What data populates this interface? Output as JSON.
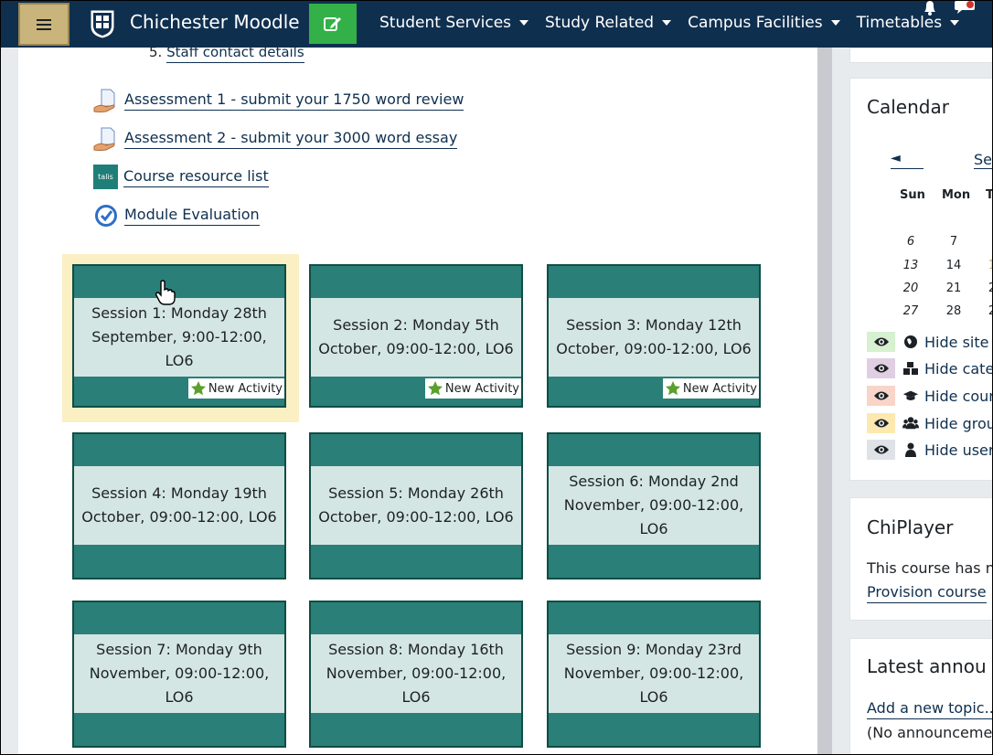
{
  "navbar": {
    "brand": "Chichester Moodle",
    "menu": [
      {
        "label": "Student Services"
      },
      {
        "label": "Study Related"
      },
      {
        "label": "Campus Facilities"
      },
      {
        "label": "Timetables"
      }
    ],
    "colors": {
      "bar": "#0f2f4f",
      "hamburger": "#c9b47b",
      "edit": "#34b049"
    }
  },
  "content": {
    "staff_contact": {
      "number": "5.",
      "label": "Staff contact details"
    },
    "activities": [
      {
        "icon": "assignment-icon",
        "label": "Assessment 1 - submit your 1750 word review"
      },
      {
        "icon": "assignment-icon",
        "label": "Assessment 2 - submit your 3000 word essay"
      },
      {
        "icon": "talis-icon",
        "label": "Course resource list",
        "icon_text": "talis"
      },
      {
        "icon": "feedback-icon",
        "label": "Module Evaluation"
      }
    ],
    "tiles": [
      {
        "title": "Session 1: Monday 28th September, 9:00-12:00, LO6",
        "badge": "New Activity"
      },
      {
        "title": "Session 2: Monday 5th October, 09:00-12:00, LO6",
        "badge": "New Activity"
      },
      {
        "title": "Session 3: Monday 12th October, 09:00-12:00, LO6",
        "badge": "New Activity"
      },
      {
        "title": "Session 4: Monday 19th October, 09:00-12:00, LO6"
      },
      {
        "title": "Session 5: Monday 26th October, 09:00-12:00, LO6"
      },
      {
        "title": "Session 6: Monday 2nd November, 09:00-12:00, LO6"
      },
      {
        "title": "Session 7: Monday 9th November, 09:00-12:00, LO6"
      },
      {
        "title": "Session 8: Monday 16th November, 09:00-12:00, LO6"
      },
      {
        "title": "Session 9: Monday 23rd November, 09:00-12:00, LO6"
      }
    ],
    "tile_colors": {
      "frame": "#2a7f78",
      "band": "#d4e6e4",
      "star": "#5aa02c"
    }
  },
  "calendar": {
    "title": "Calendar",
    "prev": "◄",
    "month": "Sep",
    "headers": [
      "Sun",
      "Mon",
      "T"
    ],
    "weeks": [
      [
        "6",
        "7",
        ""
      ],
      [
        "13",
        "14",
        "1"
      ],
      [
        "20",
        "21",
        "2"
      ],
      [
        "27",
        "28",
        "2"
      ]
    ],
    "filters": [
      {
        "label": "Hide site e",
        "color": "#d6f0d0",
        "icon": "globe-icon"
      },
      {
        "label": "Hide categ",
        "color": "#e0cfe3",
        "icon": "cubes-icon"
      },
      {
        "label": "Hide cours",
        "color": "#f8d5c8",
        "icon": "graduation-cap-icon"
      },
      {
        "label": "Hide group",
        "color": "#fde8b0",
        "icon": "users-icon"
      },
      {
        "label": "Hide user",
        "color": "#dfe3e8",
        "icon": "user-icon"
      }
    ]
  },
  "chiplayer": {
    "title": "ChiPlayer",
    "text": "This course has no",
    "link": "Provision course"
  },
  "announcements": {
    "title": "Latest annou",
    "add_link": "Add a new topic...",
    "empty": "(No announcemen"
  }
}
